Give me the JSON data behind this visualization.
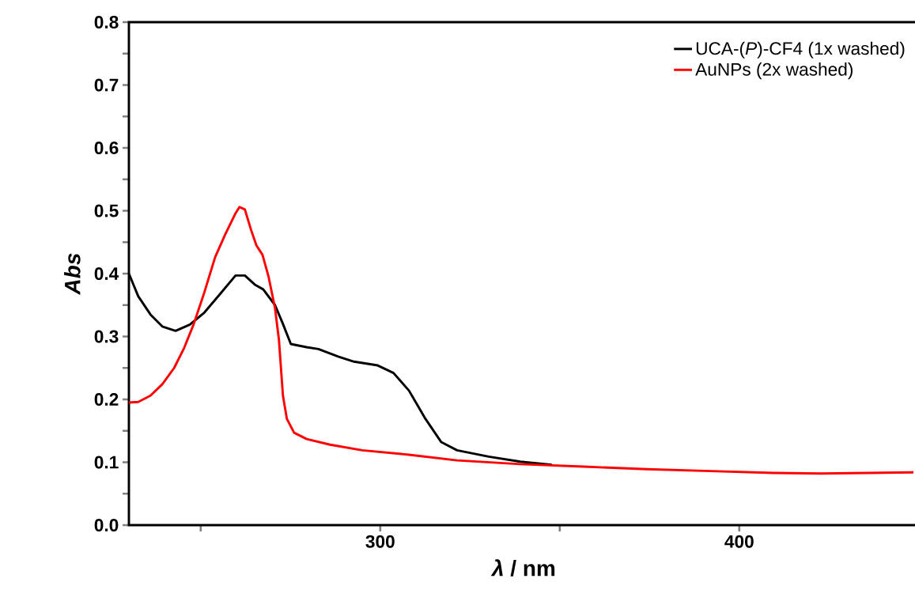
{
  "chart_data": {
    "type": "line",
    "xlabel": "*λ* / nm",
    "ylabel": "Abs",
    "xlim": [
      230,
      450
    ],
    "ylim": [
      0,
      0.8
    ],
    "xticks": [
      {
        "value": 250,
        "label": null
      },
      300,
      {
        "value": 350,
        "label": null
      },
      400,
      {
        "value": 450,
        "label": null
      }
    ],
    "yticks": [
      {
        "value": 0,
        "label": "0.0"
      },
      {
        "value": 0.05,
        "label": null
      },
      {
        "value": 0.1,
        "label": "0.1"
      },
      {
        "value": 0.15,
        "label": null
      },
      {
        "value": 0.2,
        "label": "0.2"
      },
      {
        "value": 0.25,
        "label": null
      },
      {
        "value": 0.3,
        "label": "0.3"
      },
      {
        "value": 0.35,
        "label": null
      },
      {
        "value": 0.4,
        "label": "0.4"
      },
      {
        "value": 0.45,
        "label": null
      },
      {
        "value": 0.5,
        "label": "0.5"
      },
      {
        "value": 0.55,
        "label": null
      },
      {
        "value": 0.6,
        "label": "0.6"
      },
      {
        "value": 0.65,
        "label": null
      },
      {
        "value": 0.7,
        "label": "0.7"
      },
      {
        "value": 0.75,
        "label": null
      },
      {
        "value": 0.8,
        "label": "0.8"
      }
    ],
    "grid": false,
    "legend": "top right",
    "marker": "none",
    "line_style": "solid",
    "series": [
      {
        "name": "UCA-(*P*)-CF4 (1x washed)",
        "color": "#000000",
        "x": [
          230,
          232.6,
          236,
          239.3,
          243,
          247,
          251,
          255.3,
          259.7,
          262.3,
          265.2,
          267.4,
          270.7,
          272.9,
          275.1,
          279.5,
          282.8,
          288.3,
          292.7,
          299.3,
          303.7,
          308,
          312.6,
          317,
          321.4,
          330.2,
          339,
          347.8
        ],
        "values": [
          0.4,
          0.364,
          0.335,
          0.316,
          0.309,
          0.319,
          0.338,
          0.367,
          0.397,
          0.397,
          0.382,
          0.375,
          0.35,
          0.32,
          0.288,
          0.283,
          0.28,
          0.268,
          0.26,
          0.254,
          0.242,
          0.214,
          0.169,
          0.132,
          0.119,
          0.109,
          0.101,
          0.096
        ]
      },
      {
        "name": "AuNPs (2x washed)",
        "color": "#ff0000",
        "x": [
          230,
          232.6,
          236,
          239.3,
          242.6,
          245.4,
          248,
          251,
          254,
          256.8,
          259.7,
          260.8,
          262.3,
          264,
          265.5,
          267.2,
          268.9,
          270.7,
          271.8,
          272.9,
          274,
          276,
          279.5,
          286,
          295,
          308,
          321.4,
          339,
          356.6,
          374.2,
          391.9,
          409.5,
          422.7,
          436,
          448.5
        ],
        "values": [
          0.195,
          0.196,
          0.206,
          0.224,
          0.25,
          0.282,
          0.319,
          0.37,
          0.426,
          0.462,
          0.496,
          0.506,
          0.502,
          0.47,
          0.445,
          0.43,
          0.395,
          0.345,
          0.294,
          0.206,
          0.169,
          0.147,
          0.137,
          0.128,
          0.119,
          0.112,
          0.103,
          0.097,
          0.093,
          0.089,
          0.086,
          0.083,
          0.082,
          0.083,
          0.084
        ]
      }
    ]
  }
}
